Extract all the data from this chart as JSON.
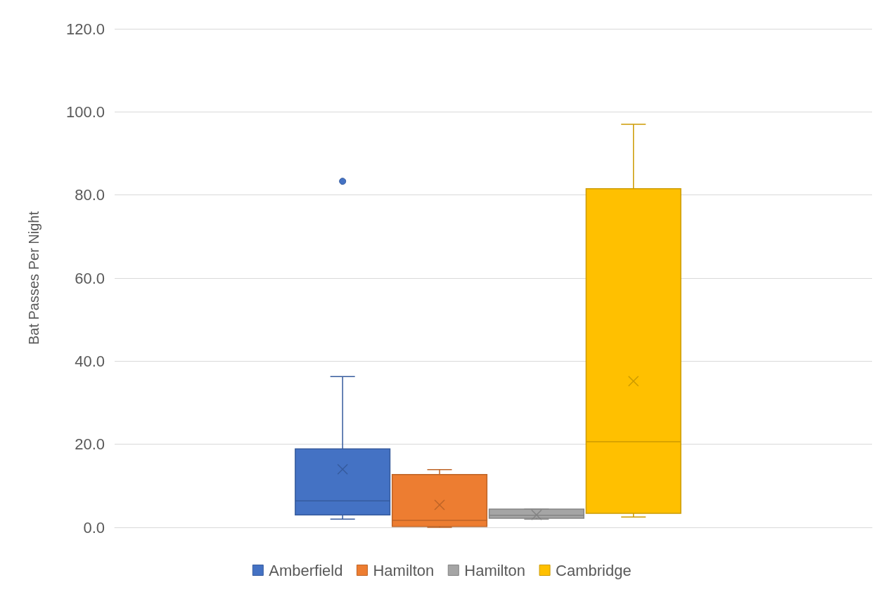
{
  "chart_data": {
    "type": "box",
    "ylabel": "Bat Passes Per Night",
    "categories": [
      null
    ],
    "ylim": [
      0,
      120
    ],
    "yticks": [
      {
        "value": 0,
        "label": "0.0"
      },
      {
        "value": 20,
        "label": "20.0"
      },
      {
        "value": 40,
        "label": "40.0"
      },
      {
        "value": 60,
        "label": "60.0"
      },
      {
        "value": 80,
        "label": "80.0"
      },
      {
        "value": 100,
        "label": "100.0"
      },
      {
        "value": 120,
        "label": "120.0"
      }
    ],
    "grid": "y",
    "legend": "bottom",
    "series": [
      {
        "name": "Amberfield",
        "color": "#4472c4",
        "boxes": [
          {
            "low": 2.0,
            "q1": 3.0,
            "median": 6.4,
            "q3": 18.9,
            "high": 36.3,
            "mean": 14.0,
            "outliers": [
              83.3
            ]
          }
        ]
      },
      {
        "name": "Hamilton",
        "color": "#ed7d31",
        "boxes": [
          {
            "low": 0,
            "q1": 0.2,
            "median": 1.7,
            "q3": 12.7,
            "high": 13.9,
            "mean": 5.4
          }
        ]
      },
      {
        "name": "Hamilton",
        "color": "#a5a5a5",
        "boxes": [
          {
            "low": 2.0,
            "q1": 2.2,
            "median": 2.9,
            "q3": 4.4,
            "high": 4.4,
            "mean": 3.0
          }
        ]
      },
      {
        "name": "Cambridge",
        "color": "#ffc000",
        "boxes": [
          {
            "low": 2.5,
            "q1": 3.4,
            "median": 20.6,
            "q3": 81.5,
            "high": 97.0,
            "mean": 35.2
          }
        ]
      }
    ]
  }
}
